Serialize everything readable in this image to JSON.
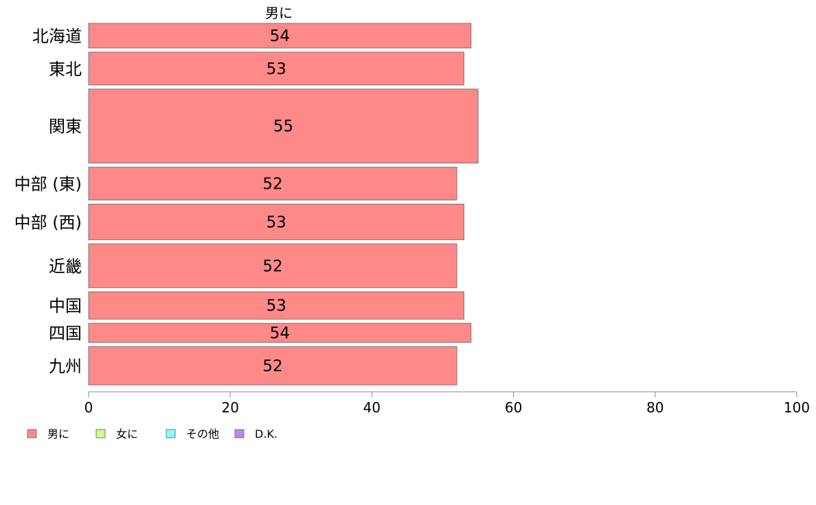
{
  "chart_data": {
    "type": "bar",
    "orientation": "horizontal",
    "stacked": true,
    "series_title": "男に",
    "categories": [
      "北海道",
      "東北",
      "関東",
      "中部 (東)",
      "中部 (西)",
      "近畿",
      "中国",
      "四国",
      "九州"
    ],
    "category_weights": [
      0.9,
      1.2,
      2.7,
      1.2,
      1.3,
      1.6,
      1.0,
      0.7,
      1.4
    ],
    "series": [
      {
        "name": "男に",
        "color": "#ff8888",
        "values": [
          54,
          53,
          55,
          52,
          53,
          52,
          53,
          54,
          52
        ]
      }
    ],
    "xlim": [
      0,
      100
    ],
    "xticks": [
      0,
      20,
      40,
      60,
      80,
      100
    ],
    "xlabel": "",
    "ylabel": "",
    "grid": false,
    "legend": {
      "placement": "bottom-left",
      "entries": [
        {
          "label": "男に",
          "color": "#ff8888"
        },
        {
          "label": "女に",
          "color": "#ccff88"
        },
        {
          "label": "その他",
          "color": "#88ffff"
        },
        {
          "label": "D.K.",
          "color": "#bb88ee"
        }
      ]
    }
  }
}
